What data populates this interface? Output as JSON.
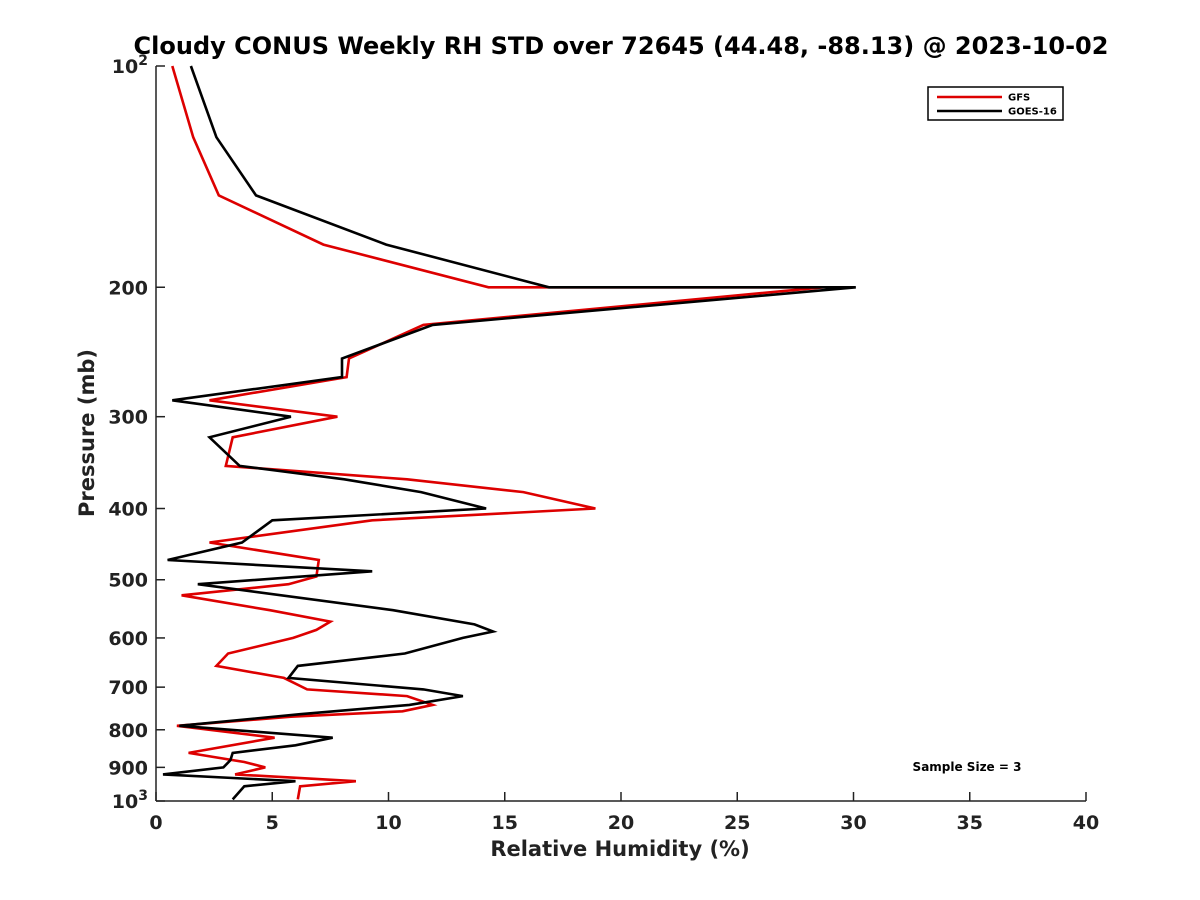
{
  "chart_data": {
    "type": "line",
    "title": "Cloudy CONUS Weekly RH STD over 72645 (44.48, -88.13) @ 2023-10-02",
    "xlabel": "Relative Humidity (%)",
    "ylabel": "Pressure (mb)",
    "xlim": [
      0,
      40
    ],
    "ylim": [
      100,
      1000
    ],
    "y_scale": "log",
    "y_reversed": true,
    "x_ticks": [
      "0",
      "5",
      "10",
      "15",
      "20",
      "25",
      "30",
      "35",
      "40"
    ],
    "y_ticks": [
      {
        "value": 100,
        "base": "10",
        "exp": "2"
      },
      {
        "value": 200,
        "label": "200"
      },
      {
        "value": 300,
        "label": "300"
      },
      {
        "value": 400,
        "label": "400"
      },
      {
        "value": 500,
        "label": "500"
      },
      {
        "value": 600,
        "label": "600"
      },
      {
        "value": 700,
        "label": "700"
      },
      {
        "value": 800,
        "label": "800"
      },
      {
        "value": 900,
        "label": "900"
      },
      {
        "value": 1000,
        "base": "10",
        "exp": "3"
      }
    ],
    "legend_position": "top-right",
    "annotation": "Sample Size = 3",
    "grid": false,
    "series": [
      {
        "name": "GFS",
        "color": "#dd0000",
        "points": [
          [
            0.7,
            100
          ],
          [
            1.6,
            125
          ],
          [
            2.7,
            150
          ],
          [
            7.2,
            175
          ],
          [
            14.3,
            200
          ],
          [
            28.7,
            200
          ],
          [
            11.5,
            225
          ],
          [
            8.3,
            250
          ],
          [
            8.2,
            265
          ],
          [
            2.3,
            285
          ],
          [
            7.8,
            300
          ],
          [
            3.3,
            320
          ],
          [
            3.0,
            350
          ],
          [
            10.8,
            365
          ],
          [
            15.8,
            380
          ],
          [
            18.9,
            400
          ],
          [
            9.3,
            415
          ],
          [
            2.3,
            445
          ],
          [
            7.0,
            470
          ],
          [
            6.9,
            495
          ],
          [
            5.7,
            507
          ],
          [
            1.1,
            525
          ],
          [
            4.9,
            550
          ],
          [
            7.5,
            570
          ],
          [
            6.9,
            585
          ],
          [
            5.9,
            600
          ],
          [
            3.1,
            630
          ],
          [
            2.6,
            655
          ],
          [
            5.5,
            680
          ],
          [
            6.5,
            705
          ],
          [
            10.8,
            720
          ],
          [
            11.9,
            740
          ],
          [
            10.6,
            755
          ],
          [
            5.8,
            768
          ],
          [
            0.9,
            790
          ],
          [
            5.1,
            820
          ],
          [
            1.4,
            860
          ],
          [
            3.8,
            885
          ],
          [
            4.7,
            900
          ],
          [
            3.4,
            920
          ],
          [
            8.6,
            940
          ],
          [
            6.2,
            955
          ],
          [
            6.1,
            995
          ]
        ]
      },
      {
        "name": "GOES-16",
        "color": "#000000",
        "points": [
          [
            1.5,
            100
          ],
          [
            2.6,
            125
          ],
          [
            4.3,
            150
          ],
          [
            9.9,
            175
          ],
          [
            16.9,
            200
          ],
          [
            30.1,
            200
          ],
          [
            11.9,
            225
          ],
          [
            8.0,
            250
          ],
          [
            8.0,
            265
          ],
          [
            0.7,
            285
          ],
          [
            5.8,
            300
          ],
          [
            2.3,
            320
          ],
          [
            3.6,
            350
          ],
          [
            8.1,
            365
          ],
          [
            11.4,
            380
          ],
          [
            14.2,
            400
          ],
          [
            5.0,
            415
          ],
          [
            3.7,
            445
          ],
          [
            0.5,
            470
          ],
          [
            9.3,
            487
          ],
          [
            1.8,
            507
          ],
          [
            10.2,
            550
          ],
          [
            13.7,
            575
          ],
          [
            14.5,
            588
          ],
          [
            13.2,
            600
          ],
          [
            10.7,
            630
          ],
          [
            6.1,
            655
          ],
          [
            5.7,
            680
          ],
          [
            11.5,
            705
          ],
          [
            13.2,
            720
          ],
          [
            10.9,
            740
          ],
          [
            6.2,
            762
          ],
          [
            1.0,
            790
          ],
          [
            7.6,
            820
          ],
          [
            6.0,
            840
          ],
          [
            3.3,
            860
          ],
          [
            3.2,
            880
          ],
          [
            2.9,
            900
          ],
          [
            0.3,
            920
          ],
          [
            6.0,
            940
          ],
          [
            3.8,
            955
          ],
          [
            3.3,
            995
          ]
        ]
      }
    ]
  }
}
